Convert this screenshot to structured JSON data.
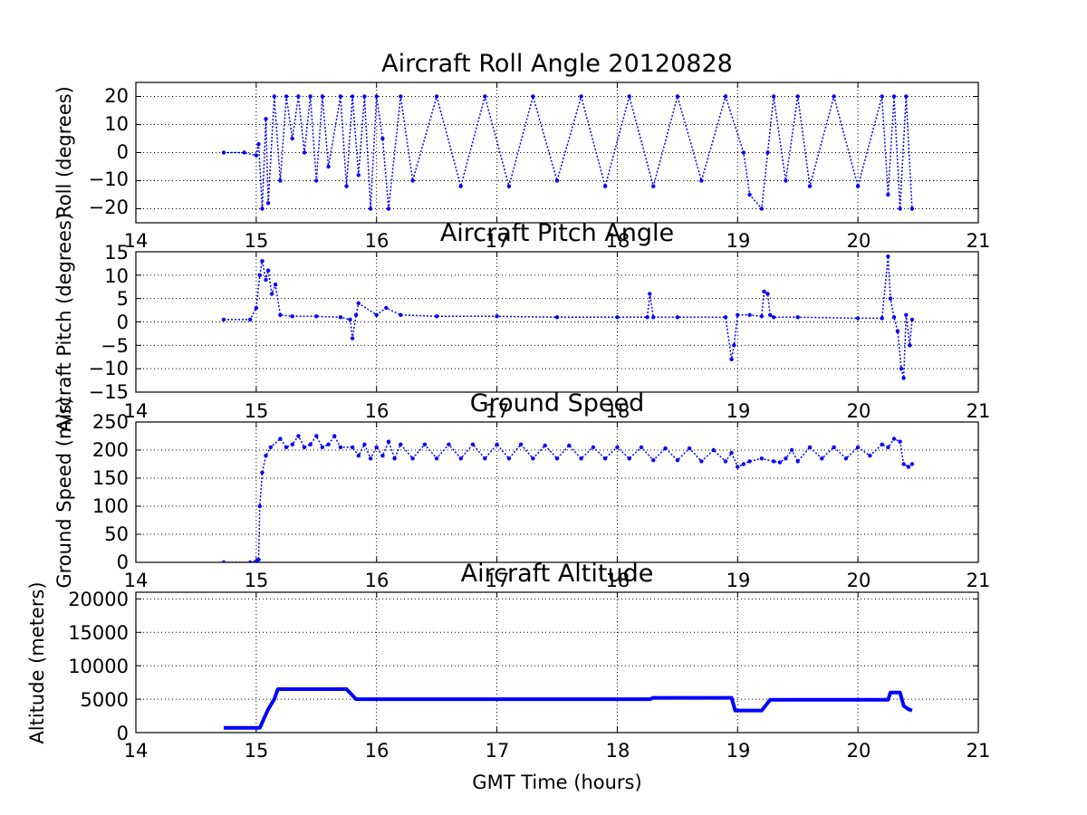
{
  "chart_data": [
    {
      "type": "scatter",
      "title": "Aircraft Roll Angle 20120828",
      "xlabel": "",
      "ylabel": "Roll (degrees)",
      "xlim": [
        14,
        21
      ],
      "ylim": [
        -25,
        25
      ],
      "x_ticks": [
        "14",
        "15",
        "16",
        "17",
        "18",
        "19",
        "20",
        "21"
      ],
      "y_ticks": [
        "−20",
        "−10",
        "0",
        "10",
        "20"
      ],
      "grid": true,
      "series": [
        {
          "color": "#0000ff",
          "x": [
            14.73,
            14.9,
            15.0,
            15.02,
            15.05,
            15.08,
            15.1,
            15.15,
            15.2,
            15.25,
            15.3,
            15.35,
            15.4,
            15.45,
            15.5,
            15.55,
            15.6,
            15.7,
            15.75,
            15.8,
            15.85,
            15.9,
            15.95,
            16.0,
            16.05,
            16.1,
            16.2,
            16.3,
            16.5,
            16.7,
            16.9,
            17.1,
            17.3,
            17.5,
            17.7,
            17.9,
            18.1,
            18.3,
            18.5,
            18.7,
            18.9,
            19.05,
            19.1,
            19.2,
            19.25,
            19.3,
            19.4,
            19.5,
            19.6,
            19.8,
            20.0,
            20.2,
            20.25,
            20.3,
            20.35,
            20.4,
            20.45
          ],
          "y": [
            0,
            0,
            -1,
            3,
            -20,
            12,
            -18,
            20,
            -10,
            20,
            5,
            20,
            0,
            20,
            -10,
            20,
            -5,
            20,
            -12,
            20,
            -8,
            20,
            -20,
            20,
            5,
            -20,
            20,
            -10,
            20,
            -12,
            20,
            -12,
            20,
            -10,
            20,
            -12,
            20,
            -12,
            20,
            -10,
            20,
            0,
            -15,
            -20,
            0,
            20,
            -10,
            20,
            -12,
            20,
            -12,
            20,
            -15,
            20,
            -20,
            20,
            -20
          ]
        }
      ]
    },
    {
      "type": "scatter",
      "title": "Aircraft Pitch Angle",
      "xlabel": "",
      "ylabel": "Aircraft Pitch (degrees)",
      "xlim": [
        14,
        21
      ],
      "ylim": [
        -15,
        15
      ],
      "x_ticks": [
        "14",
        "15",
        "16",
        "17",
        "18",
        "19",
        "20",
        "21"
      ],
      "y_ticks": [
        "−15",
        "−10",
        "−5",
        "0",
        "5",
        "10",
        "15"
      ],
      "grid": true,
      "series": [
        {
          "color": "#0000ff",
          "x": [
            14.73,
            14.95,
            15.0,
            15.03,
            15.05,
            15.08,
            15.1,
            15.13,
            15.16,
            15.2,
            15.3,
            15.5,
            15.7,
            15.78,
            15.8,
            15.83,
            15.85,
            16.0,
            16.08,
            16.2,
            16.5,
            17.0,
            17.5,
            18.0,
            18.25,
            18.27,
            18.3,
            18.5,
            18.9,
            18.95,
            18.97,
            19.0,
            19.1,
            19.2,
            19.22,
            19.25,
            19.27,
            19.3,
            19.5,
            20.0,
            20.2,
            20.25,
            20.27,
            20.3,
            20.33,
            20.36,
            20.38,
            20.4,
            20.43,
            20.45
          ],
          "y": [
            0.5,
            0.5,
            3,
            10,
            13,
            9,
            11,
            6,
            8,
            1.5,
            1.2,
            1.2,
            1.0,
            0.5,
            -3.5,
            1.5,
            4,
            1.5,
            3,
            1.5,
            1.2,
            1.2,
            1.0,
            1.0,
            1.0,
            6,
            1.0,
            1.0,
            1.0,
            -8,
            -5,
            1.5,
            1.5,
            1.2,
            6.5,
            6,
            1.5,
            1.0,
            1.0,
            0.8,
            0.8,
            14,
            5,
            1.0,
            -2,
            -10,
            -12,
            1.5,
            -5,
            0.5
          ]
        }
      ]
    },
    {
      "type": "scatter",
      "title": "Ground Speed",
      "xlabel": "",
      "ylabel": "Ground Speed (m/s)",
      "xlim": [
        14,
        21
      ],
      "ylim": [
        0,
        250
      ],
      "x_ticks": [
        "14",
        "15",
        "16",
        "17",
        "18",
        "19",
        "20",
        "21"
      ],
      "y_ticks": [
        "0",
        "50",
        "100",
        "150",
        "200",
        "250"
      ],
      "grid": true,
      "series": [
        {
          "color": "#0000ff",
          "x": [
            14.73,
            14.95,
            15.0,
            15.02,
            15.03,
            15.05,
            15.08,
            15.12,
            15.2,
            15.25,
            15.3,
            15.35,
            15.4,
            15.45,
            15.5,
            15.55,
            15.6,
            15.65,
            15.7,
            15.8,
            15.85,
            15.9,
            15.95,
            16.0,
            16.05,
            16.1,
            16.15,
            16.2,
            16.3,
            16.4,
            16.5,
            16.6,
            16.7,
            16.8,
            16.9,
            17.0,
            17.1,
            17.2,
            17.3,
            17.4,
            17.5,
            17.6,
            17.7,
            17.8,
            17.9,
            18.0,
            18.1,
            18.2,
            18.3,
            18.4,
            18.5,
            18.6,
            18.7,
            18.8,
            18.9,
            18.95,
            19.0,
            19.05,
            19.1,
            19.2,
            19.3,
            19.35,
            19.4,
            19.45,
            19.5,
            19.6,
            19.7,
            19.8,
            19.9,
            20.0,
            20.1,
            20.2,
            20.25,
            20.3,
            20.35,
            20.38,
            20.42,
            20.45
          ],
          "y": [
            0,
            0,
            2,
            5,
            100,
            160,
            190,
            205,
            220,
            205,
            210,
            225,
            205,
            210,
            225,
            205,
            210,
            225,
            205,
            205,
            190,
            210,
            185,
            205,
            190,
            215,
            185,
            210,
            185,
            210,
            185,
            210,
            185,
            210,
            185,
            210,
            185,
            210,
            185,
            208,
            185,
            208,
            185,
            205,
            185,
            205,
            185,
            205,
            182,
            203,
            182,
            203,
            180,
            200,
            180,
            195,
            170,
            175,
            180,
            185,
            180,
            178,
            185,
            200,
            180,
            205,
            185,
            205,
            185,
            205,
            190,
            210,
            205,
            220,
            215,
            175,
            170,
            175
          ]
        }
      ]
    },
    {
      "type": "line",
      "title": "Aircraft Altitude",
      "xlabel": "GMT Time (hours)",
      "ylabel": "Altitude (meters)",
      "xlim": [
        14,
        21
      ],
      "ylim": [
        0,
        21000
      ],
      "x_ticks": [
        "14",
        "15",
        "16",
        "17",
        "18",
        "19",
        "20",
        "21"
      ],
      "y_ticks": [
        "0",
        "5000",
        "10000",
        "15000",
        "20000"
      ],
      "grid": true,
      "series": [
        {
          "color": "#0000ff",
          "x": [
            14.73,
            15.03,
            15.1,
            15.15,
            15.18,
            15.75,
            15.83,
            16.0,
            17.0,
            18.0,
            18.27,
            18.3,
            18.95,
            18.98,
            19.2,
            19.27,
            20.0,
            20.25,
            20.27,
            20.35,
            20.38,
            20.42,
            20.45
          ],
          "y": [
            700,
            700,
            3500,
            5000,
            6500,
            6500,
            5000,
            5000,
            5000,
            5000,
            5000,
            5200,
            5200,
            3300,
            3300,
            4900,
            4900,
            4900,
            6000,
            6000,
            4000,
            3500,
            3300
          ]
        }
      ]
    }
  ]
}
